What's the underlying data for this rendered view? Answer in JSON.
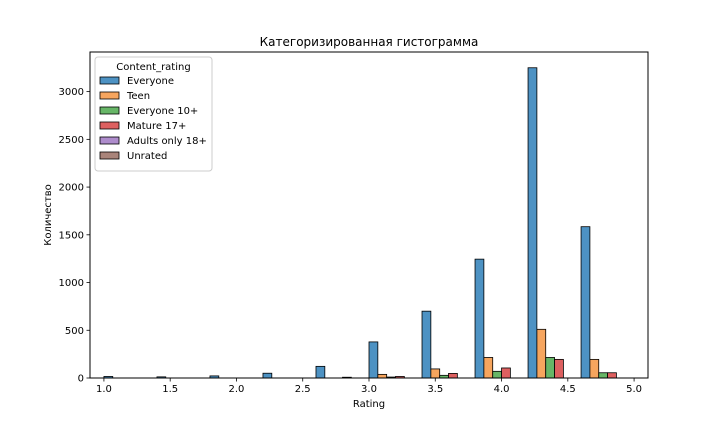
{
  "chart_data": {
    "type": "bar",
    "title": "Категоризированная гистограмма",
    "xlabel": "Rating",
    "ylabel": "Количество",
    "xlim": [
      0.895,
      5.105
    ],
    "ylim": [
      0,
      3415
    ],
    "xticks": [
      1.0,
      1.5,
      2.0,
      2.5,
      3.0,
      3.5,
      4.0,
      4.5,
      5.0
    ],
    "yticks": [
      0,
      500,
      1000,
      1500,
      2000,
      2500,
      3000
    ],
    "bin_width": 0.4,
    "bin_starts": [
      1.0,
      1.4,
      1.8,
      2.2,
      2.6,
      3.0,
      3.4,
      3.8,
      4.2,
      4.6
    ],
    "legend": {
      "title": "Content_rating",
      "placement": "top-left"
    },
    "grid": false,
    "series": [
      {
        "name": "Everyone",
        "color": "#3a86bd",
        "values": [
          16,
          12,
          22,
          50,
          122,
          378,
          700,
          1245,
          3250,
          1585
        ]
      },
      {
        "name": "Teen",
        "color": "#f59b4c",
        "values": [
          0,
          0,
          0,
          0,
          0,
          38,
          95,
          215,
          510,
          195
        ]
      },
      {
        "name": "Everyone 10+",
        "color": "#56ae57",
        "values": [
          0,
          0,
          0,
          0,
          0,
          10,
          28,
          70,
          215,
          55
        ]
      },
      {
        "name": "Mature 17+",
        "color": "#d94f4f",
        "values": [
          0,
          0,
          0,
          0,
          8,
          16,
          48,
          105,
          195,
          55
        ]
      },
      {
        "name": "Adults only 18+",
        "color": "#a57fc6",
        "values": [
          0,
          0,
          0,
          0,
          0,
          0,
          0,
          0,
          0,
          0
        ]
      },
      {
        "name": "Unrated",
        "color": "#a0776b",
        "values": [
          0,
          0,
          0,
          0,
          0,
          0,
          0,
          0,
          0,
          0
        ]
      }
    ]
  }
}
